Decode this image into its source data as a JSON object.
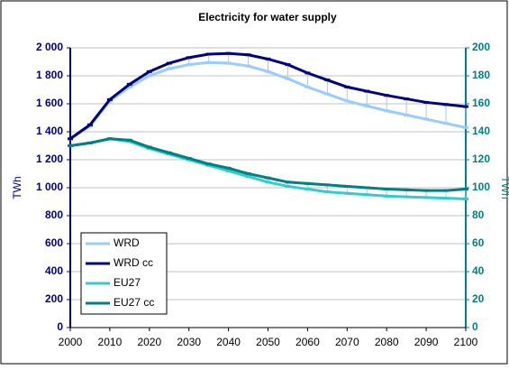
{
  "chart_data": {
    "type": "line",
    "title": "Electricity for water supply",
    "x": [
      2000,
      2005,
      2010,
      2015,
      2020,
      2025,
      2030,
      2035,
      2040,
      2045,
      2050,
      2055,
      2060,
      2065,
      2070,
      2075,
      2080,
      2085,
      2090,
      2095,
      2100
    ],
    "series": [
      {
        "name": "WRD",
        "color": "#99ccff",
        "values": [
          1350,
          1440,
          1620,
          1720,
          1800,
          1850,
          1880,
          1895,
          1890,
          1870,
          1830,
          1780,
          1720,
          1670,
          1620,
          1585,
          1550,
          1520,
          1490,
          1460,
          1430
        ]
      },
      {
        "name": "WRD cc",
        "color": "#000080",
        "values": [
          1350,
          1450,
          1630,
          1740,
          1830,
          1890,
          1930,
          1955,
          1960,
          1950,
          1920,
          1880,
          1820,
          1770,
          1720,
          1690,
          1660,
          1635,
          1610,
          1595,
          1580
        ]
      },
      {
        "name": "EU27",
        "color": "#33cccc",
        "axis": "y2",
        "values": [
          130,
          132,
          135,
          133,
          128,
          124,
          120,
          116,
          112,
          108,
          104,
          101,
          99,
          97,
          96,
          95,
          94,
          93.5,
          93,
          92.5,
          92
        ]
      },
      {
        "name": "EU27 cc",
        "color": "#008080",
        "axis": "y2",
        "values": [
          130,
          132,
          135,
          134,
          129,
          125,
          121,
          117,
          114,
          110,
          107,
          104,
          103,
          102,
          101,
          100,
          99,
          98.5,
          98,
          98,
          99
        ]
      }
    ],
    "xlim": [
      2000,
      2100
    ],
    "xticks": [
      2000,
      2010,
      2020,
      2030,
      2040,
      2050,
      2060,
      2070,
      2080,
      2090,
      2100
    ],
    "ylim": [
      0,
      2000
    ],
    "yticks": [
      0,
      200,
      400,
      600,
      800,
      {
        "value": 1000,
        "label": "1 000"
      },
      {
        "value": 1200,
        "label": "1 200"
      },
      {
        "value": 1400,
        "label": "1 400"
      },
      {
        "value": 1600,
        "label": "1 600"
      },
      {
        "value": 1800,
        "label": "1 800"
      },
      {
        "value": 2000,
        "label": "2 000"
      }
    ],
    "y2lim": [
      0,
      200
    ],
    "y2ticks": [
      0,
      20,
      40,
      60,
      80,
      100,
      120,
      140,
      160,
      180,
      200
    ],
    "ylabel": "TWh",
    "y2label": "TWh",
    "legend": "lower left",
    "grid": true
  }
}
